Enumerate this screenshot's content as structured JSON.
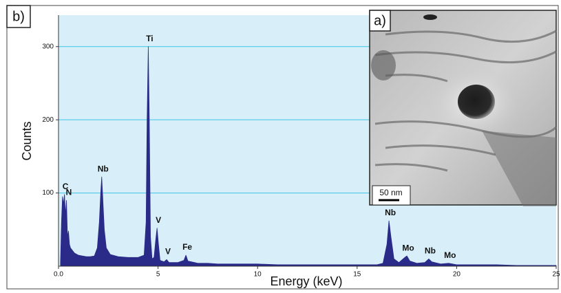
{
  "panel_label": "b)",
  "inset": {
    "label": "a)",
    "scale_bar": "50 nm"
  },
  "chart_data": {
    "type": "area",
    "xlabel": "Energy (keV)",
    "ylabel": "Counts",
    "color": "#2a2a88",
    "background": "#d8eff9",
    "grid": true,
    "xlim": [
      0,
      25
    ],
    "ylim": [
      0,
      343
    ],
    "xticks": [
      {
        "value": 0,
        "label": "0.0"
      },
      5,
      10,
      15,
      20,
      25
    ],
    "yticks": [
      100,
      200,
      300
    ],
    "x": [
      0.1,
      0.15,
      0.2,
      0.25,
      0.3,
      0.35,
      0.4,
      0.45,
      0.5,
      0.55,
      0.6,
      0.8,
      1.0,
      1.2,
      1.4,
      1.6,
      1.8,
      1.95,
      2.05,
      2.12,
      2.17,
      2.22,
      2.3,
      2.4,
      2.6,
      3.0,
      3.5,
      4.0,
      4.3,
      4.4,
      4.45,
      4.51,
      4.56,
      4.62,
      4.7,
      4.8,
      4.88,
      4.95,
      5.02,
      5.1,
      5.3,
      5.43,
      5.55,
      6.0,
      6.3,
      6.4,
      6.5,
      7.0,
      7.5,
      8,
      9,
      10,
      11,
      12,
      13,
      14,
      15,
      16,
      16.3,
      16.5,
      16.6,
      16.7,
      16.85,
      17.1,
      17.4,
      17.5,
      17.65,
      18.0,
      18.4,
      18.6,
      18.75,
      19.2,
      19.6,
      20,
      21,
      22,
      23,
      24,
      25
    ],
    "values": [
      5,
      60,
      95,
      85,
      98,
      70,
      90,
      40,
      48,
      30,
      25,
      18,
      15,
      14,
      13,
      13,
      14,
      25,
      60,
      100,
      122,
      95,
      50,
      25,
      16,
      13,
      12,
      12,
      15,
      60,
      200,
      300,
      200,
      40,
      10,
      12,
      35,
      52,
      30,
      8,
      6,
      9,
      5,
      5,
      8,
      15,
      7,
      4,
      4,
      3,
      3,
      3,
      2,
      2,
      2,
      2,
      2,
      2,
      4,
      30,
      62,
      40,
      10,
      5,
      12,
      14,
      7,
      4,
      5,
      10,
      6,
      3,
      4,
      2,
      2,
      2,
      1,
      1,
      1
    ],
    "annotations": [
      {
        "text": "C",
        "x": 0.28,
        "y": 98
      },
      {
        "text": "N",
        "x": 0.45,
        "y": 90
      },
      {
        "text": "Nb",
        "x": 2.17,
        "y": 122
      },
      {
        "text": "Ti",
        "x": 4.51,
        "y": 300
      },
      {
        "text": "V",
        "x": 4.95,
        "y": 52
      },
      {
        "text": "V",
        "x": 5.43,
        "y": 9
      },
      {
        "text": "Fe",
        "x": 6.4,
        "y": 15
      },
      {
        "text": "Nb",
        "x": 16.6,
        "y": 62
      },
      {
        "text": "Mo",
        "x": 17.5,
        "y": 14
      },
      {
        "text": "Nb",
        "x": 18.6,
        "y": 10
      },
      {
        "text": "Mo",
        "x": 19.6,
        "y": 4
      }
    ]
  }
}
